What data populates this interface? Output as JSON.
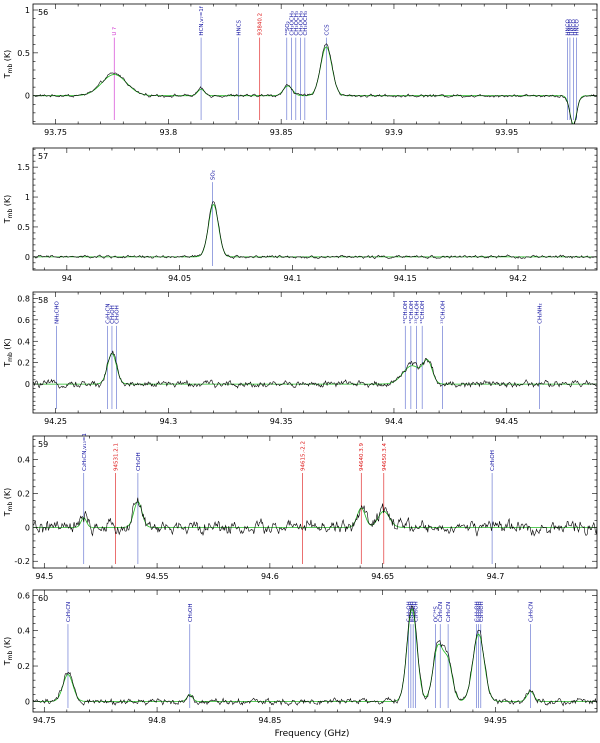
{
  "figure": {
    "xlabel": "Frequency (GHz)",
    "ylabel_main": "T",
    "ylabel_sub": "mb",
    "ylabel_unit": " (K)"
  },
  "colors": {
    "observed": "#000000",
    "model": "#22bb22",
    "identified": "#1010a0",
    "unidentified": "#dd1111",
    "tentative": "#cc22cc",
    "marker_line_blue": "#5566cc"
  },
  "chart_data": [
    {
      "type": "line",
      "panel": "56",
      "xlim": [
        93.74,
        93.99
      ],
      "ylim": [
        -0.33,
        1.07
      ],
      "xticks": [
        93.75,
        93.8,
        93.85,
        93.9,
        93.95
      ],
      "xtick_labels": [
        "93.75",
        "93.8",
        "93.85",
        "93.9",
        "93.95"
      ],
      "yticks": [
        0,
        0.5,
        1
      ],
      "ytick_labels": [
        "0",
        "0.5",
        "1"
      ],
      "peaks": [
        {
          "x": 93.776,
          "amp": 0.26,
          "w": 0.0055
        },
        {
          "x": 93.8145,
          "amp": 0.08,
          "w": 0.0015
        },
        {
          "x": 93.853,
          "amp": 0.12,
          "w": 0.002
        },
        {
          "x": 93.87,
          "amp": 0.6,
          "w": 0.0025
        },
        {
          "x": 93.9795,
          "amp": -0.35,
          "w": 0.0015
        }
      ],
      "noise": 0.022,
      "lines": [
        {
          "x": 93.776,
          "label": "U ?",
          "kind": "tentative"
        },
        {
          "x": 93.8145,
          "label": "HCN,v₇=1f",
          "kind": "identified"
        },
        {
          "x": 93.831,
          "label": "HNCS",
          "kind": "identified"
        },
        {
          "x": 93.8405,
          "label": "93840.2",
          "kind": "unidentified"
        },
        {
          "x": 93.8525,
          "label": "³⁴SO₂",
          "kind": "identified"
        },
        {
          "x": 93.8545,
          "label": "CH₃OCH₃",
          "kind": "identified"
        },
        {
          "x": 93.8565,
          "label": "CH₃OCH₃",
          "kind": "identified"
        },
        {
          "x": 93.8585,
          "label": "CH₃OCH₃",
          "kind": "identified"
        },
        {
          "x": 93.8605,
          "label": "CH₃OCH₃",
          "kind": "identified"
        },
        {
          "x": 93.87,
          "label": "CCS",
          "kind": "identified"
        },
        {
          "x": 93.977,
          "label": "HNCO",
          "kind": "identified"
        },
        {
          "x": 93.978,
          "label": "HNCO",
          "kind": "identified"
        },
        {
          "x": 93.9795,
          "label": "HNCO",
          "kind": "identified"
        },
        {
          "x": 93.981,
          "label": "HNCO",
          "kind": "identified"
        }
      ]
    },
    {
      "type": "line",
      "panel": "57",
      "xlim": [
        93.985,
        94.235
      ],
      "ylim": [
        -0.22,
        1.82
      ],
      "xticks": [
        94.0,
        94.05,
        94.1,
        94.15,
        94.2
      ],
      "xtick_labels": [
        "94",
        "94.05",
        "94.1",
        "94.15",
        "94.2"
      ],
      "yticks": [
        0,
        0.5,
        1,
        1.5
      ],
      "ytick_labels": [
        "0",
        "0.5",
        "1",
        "1.5"
      ],
      "peaks": [
        {
          "x": 94.065,
          "amp": 0.92,
          "w": 0.0022
        }
      ],
      "noise": 0.03,
      "lines": [
        {
          "x": 94.0645,
          "label": "SO₂",
          "kind": "identified"
        }
      ]
    },
    {
      "type": "line",
      "panel": "58",
      "xlim": [
        94.24,
        94.49
      ],
      "ylim": [
        -0.27,
        0.86
      ],
      "xticks": [
        94.25,
        94.3,
        94.35,
        94.4,
        94.45
      ],
      "xtick_labels": [
        "94.25",
        "94.3",
        "94.35",
        "94.4",
        "94.45"
      ],
      "yticks": [
        0,
        0.2,
        0.4,
        0.6,
        0.8
      ],
      "ytick_labels": [
        "0",
        "0.2",
        "0.4",
        "0.6",
        "0.8"
      ],
      "peaks": [
        {
          "x": 94.275,
          "amp": 0.3,
          "w": 0.002
        },
        {
          "x": 94.408,
          "amp": 0.18,
          "w": 0.004
        },
        {
          "x": 94.415,
          "amp": 0.2,
          "w": 0.002
        }
      ],
      "noise": 0.04,
      "lines": [
        {
          "x": 94.2505,
          "label": "NH₂CHO",
          "kind": "identified"
        },
        {
          "x": 94.273,
          "label": "C₂H₃CN",
          "kind": "identified"
        },
        {
          "x": 94.275,
          "label": "CH₃OH",
          "kind": "identified"
        },
        {
          "x": 94.277,
          "label": "CH₃OH",
          "kind": "identified"
        },
        {
          "x": 94.405,
          "label": "¹³CH₃OH",
          "kind": "identified"
        },
        {
          "x": 94.4075,
          "label": "¹³CH₃OH",
          "kind": "identified"
        },
        {
          "x": 94.41,
          "label": "¹³CH₃OH",
          "kind": "identified"
        },
        {
          "x": 94.4125,
          "label": "¹³CH₃OH",
          "kind": "identified"
        },
        {
          "x": 94.4215,
          "label": "¹³CH₃OH",
          "kind": "identified"
        },
        {
          "x": 94.4645,
          "label": "CH₃NH₂",
          "kind": "identified"
        }
      ]
    },
    {
      "type": "line",
      "panel": "59",
      "xlim": [
        94.495,
        94.745
      ],
      "ylim": [
        -0.24,
        0.54
      ],
      "xticks": [
        94.5,
        94.55,
        94.6,
        94.65,
        94.7
      ],
      "xtick_labels": [
        "94.5",
        "94.55",
        "94.6",
        "94.65",
        "94.7"
      ],
      "yticks": [
        -0.2,
        0,
        0.2,
        0.4
      ],
      "ytick_labels": [
        "-0.2",
        "0",
        "0.2",
        "0.4"
      ],
      "peaks": [
        {
          "x": 94.5415,
          "amp": 0.16,
          "w": 0.0018
        },
        {
          "x": 94.6405,
          "amp": 0.12,
          "w": 0.0018
        },
        {
          "x": 94.6505,
          "amp": 0.1,
          "w": 0.0025
        },
        {
          "x": 94.5175,
          "amp": 0.06,
          "w": 0.0012
        }
      ],
      "noise": 0.05,
      "lines": [
        {
          "x": 94.5175,
          "label": "C₂H₅CN,v₁₃=1",
          "kind": "identified"
        },
        {
          "x": 94.5315,
          "label": "94531.2.1",
          "kind": "unidentified"
        },
        {
          "x": 94.5415,
          "label": "CH₃OH",
          "kind": "identified"
        },
        {
          "x": 94.6145,
          "label": "94615.-2.2",
          "kind": "unidentified"
        },
        {
          "x": 94.6405,
          "label": "94640.3.9",
          "kind": "unidentified"
        },
        {
          "x": 94.6505,
          "label": "94650.3.4",
          "kind": "unidentified"
        },
        {
          "x": 94.6985,
          "label": "C₂H₅OH",
          "kind": "identified"
        }
      ]
    },
    {
      "type": "line",
      "panel": "60",
      "xlim": [
        94.745,
        94.995
      ],
      "ylim": [
        -0.06,
        0.63
      ],
      "xticks": [
        94.75,
        94.8,
        94.85,
        94.9,
        94.95
      ],
      "xtick_labels": [
        "94.75",
        "94.8",
        "94.85",
        "94.9",
        "94.95"
      ],
      "yticks": [
        0,
        0.2,
        0.4,
        0.6
      ],
      "ytick_labels": [
        "0",
        "0.2",
        "0.4",
        "0.6"
      ],
      "peaks": [
        {
          "x": 94.7605,
          "amp": 0.16,
          "w": 0.0022
        },
        {
          "x": 94.8145,
          "amp": 0.04,
          "w": 0.0012
        },
        {
          "x": 94.913,
          "amp": 0.55,
          "w": 0.0022
        },
        {
          "x": 94.9245,
          "amp": 0.32,
          "w": 0.0022
        },
        {
          "x": 94.929,
          "amp": 0.22,
          "w": 0.002
        },
        {
          "x": 94.9425,
          "amp": 0.4,
          "w": 0.0025
        },
        {
          "x": 94.9655,
          "amp": 0.06,
          "w": 0.0015
        }
      ],
      "noise": 0.022,
      "lines": [
        {
          "x": 94.7605,
          "label": "C₂H₅CN",
          "kind": "identified"
        },
        {
          "x": 94.8145,
          "label": "CH₃OH",
          "kind": "identified"
        },
        {
          "x": 94.9115,
          "label": "C₂H₅OH",
          "kind": "identified"
        },
        {
          "x": 94.9125,
          "label": "C₂H₅OH",
          "kind": "identified"
        },
        {
          "x": 94.9135,
          "label": "C₂H₅OH",
          "kind": "identified"
        },
        {
          "x": 94.9145,
          "label": "C₂H₅OH",
          "kind": "identified"
        },
        {
          "x": 94.9235,
          "label": "OC³⁴S",
          "kind": "identified"
        },
        {
          "x": 94.9255,
          "label": "C₂H₅CN",
          "kind": "identified"
        },
        {
          "x": 94.929,
          "label": "C₂H₅CN",
          "kind": "identified"
        },
        {
          "x": 94.9415,
          "label": "C₂H₅OH",
          "kind": "identified"
        },
        {
          "x": 94.9425,
          "label": "C₂H₅OH",
          "kind": "identified"
        },
        {
          "x": 94.9435,
          "label": "C₂H₅OH",
          "kind": "identified"
        },
        {
          "x": 94.9655,
          "label": "C₂H₅CN",
          "kind": "identified"
        }
      ]
    }
  ]
}
